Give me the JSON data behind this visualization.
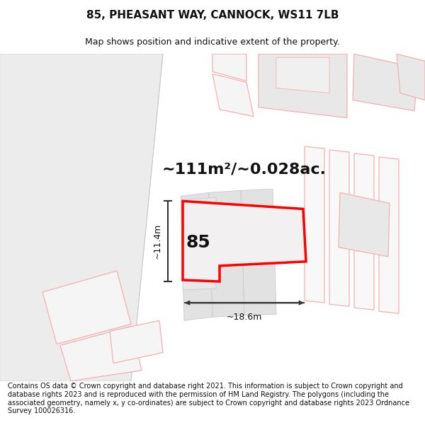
{
  "title": "85, PHEASANT WAY, CANNOCK, WS11 7LB",
  "subtitle": "Map shows position and indicative extent of the property.",
  "area_text": "~111m²/~0.028ac.",
  "dim_width": "~18.6m",
  "dim_height": "~11.4m",
  "label": "85",
  "footer": "Contains OS data © Crown copyright and database right 2021. This information is subject to Crown copyright and database rights 2023 and is reproduced with the permission of HM Land Registry. The polygons (including the associated geometry, namely x, y co-ordinates) are subject to Crown copyright and database rights 2023 Ordnance Survey 100026316.",
  "bg_color": "#ffffff",
  "map_bg": "#ffffff",
  "ghost_fill": "#f5f5f5",
  "ghost_stroke": "#f5b0b0",
  "gray_fill": "#e8e8e8",
  "gray_stroke": "#d0c8c8",
  "plot_stroke": "#ff0000",
  "title_fontsize": 11,
  "subtitle_fontsize": 9,
  "area_fontsize": 16,
  "label_fontsize": 18,
  "dim_fontsize": 9,
  "footer_fontsize": 7
}
